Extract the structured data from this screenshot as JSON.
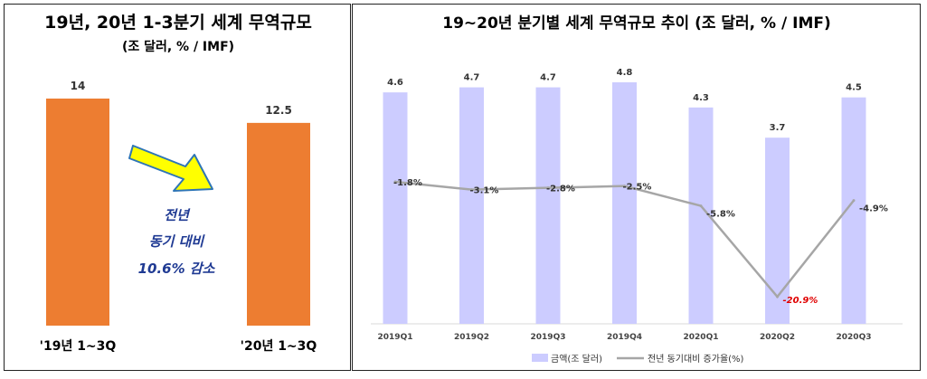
{
  "colors": {
    "orange_bar": "#ED7D31",
    "lavender_bar": "#CCCCFF",
    "line": "#A6A6A6",
    "negative_highlight": "#E00000",
    "callout_text": "#1F3A93",
    "arrow_fill": "#FFFF00",
    "arrow_stroke": "#2E75B6"
  },
  "left": {
    "title": "19년, 20년 1-3분기 세계 무역규모",
    "subtitle": "(조 달러, % / IMF)",
    "callout": {
      "line1": "전년",
      "line2": "동기 대비",
      "line3": "10.6% 감소"
    },
    "arrow_icon": "yellow-right-down-arrow"
  },
  "right": {
    "title": "19~20년 분기별 세계 무역규모 추이 (조 달러, % / IMF)"
  },
  "chart_data": [
    {
      "type": "bar",
      "categories": [
        "'19년 1~3Q",
        "'20년 1~3Q"
      ],
      "values": [
        14,
        12.5
      ],
      "value_labels": [
        "14",
        "12.5"
      ],
      "title": "19년, 20년 1-3분기 세계 무역규모",
      "subtitle": "(조 달러, % / IMF)",
      "ylim": [
        0,
        14.5
      ],
      "grid": false
    },
    {
      "type": "bar",
      "categories": [
        "2019Q1",
        "2019Q2",
        "2019Q3",
        "2019Q4",
        "2020Q1",
        "2020Q2",
        "2020Q3"
      ],
      "title": "19~20년 분기별 세계 무역규모 추이 (조 달러, % / IMF)",
      "series": [
        {
          "name": "금액(조 달러)",
          "type": "bar",
          "values": [
            4.6,
            4.7,
            4.7,
            4.8,
            4.3,
            3.7,
            4.5
          ],
          "labels": [
            "4.6",
            "4.7",
            "4.7",
            "4.8",
            "4.3",
            "3.7",
            "4.5"
          ]
        },
        {
          "name": "전년 동기대비 증가율(%)",
          "type": "line",
          "values": [
            -1.8,
            -3.1,
            -2.8,
            -2.5,
            -5.8,
            -20.9,
            -4.9
          ],
          "labels": [
            "-1.8%",
            "-3.1%",
            "-2.8%",
            "-2.5%",
            "-5.8%",
            "-20.9%",
            "-4.9%"
          ]
        }
      ],
      "ylim_bars": [
        0,
        4.8
      ],
      "ylim_line": [
        -22,
        0
      ],
      "legend": "bottom",
      "grid": false
    }
  ]
}
